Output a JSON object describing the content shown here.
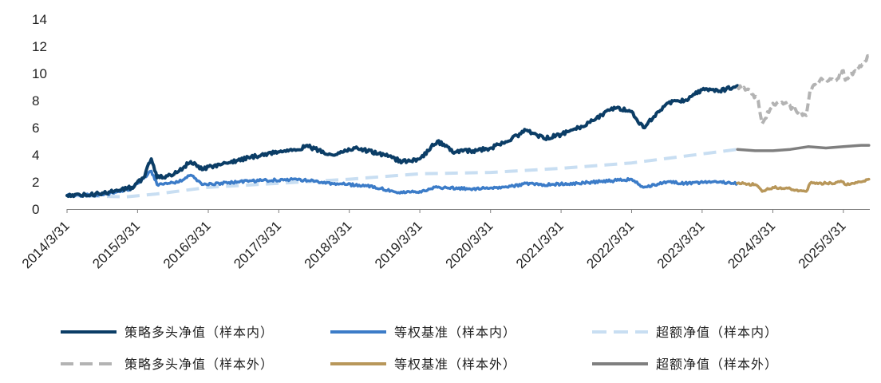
{
  "chart_data": {
    "type": "line",
    "title": "",
    "xlabel": "",
    "ylabel": "",
    "ylim": [
      0,
      14
    ],
    "yticks": [
      "0",
      "2",
      "4",
      "6",
      "8",
      "10",
      "12",
      "14"
    ],
    "xticks": [
      "2014/3/31",
      "2015/3/31",
      "2016/3/31",
      "2017/3/31",
      "2018/3/31",
      "2019/3/31",
      "2020/3/31",
      "2021/3/31",
      "2022/3/31",
      "2023/3/31",
      "2024/3/31",
      "2025/3/31"
    ],
    "grid": false,
    "legend_position": "bottom",
    "series": [
      {
        "name": "策略多头净值（样本内）",
        "color": "#0b3d66",
        "style": "solid",
        "points": [
          [
            "2014/3/31",
            1.0
          ],
          [
            "2014/7/31",
            1.05
          ],
          [
            "2014/11/30",
            1.3
          ],
          [
            "2015/2/28",
            1.6
          ],
          [
            "2015/4/30",
            2.3
          ],
          [
            "2015/6/10",
            3.7
          ],
          [
            "2015/7/10",
            2.3
          ],
          [
            "2015/9/30",
            2.5
          ],
          [
            "2015/12/31",
            3.5
          ],
          [
            "2016/2/28",
            2.9
          ],
          [
            "2016/4/30",
            3.2
          ],
          [
            "2016/8/31",
            3.6
          ],
          [
            "2016/12/31",
            4.0
          ],
          [
            "2017/4/30",
            4.3
          ],
          [
            "2017/8/31",
            4.6
          ],
          [
            "2017/12/31",
            4.0
          ],
          [
            "2018/4/30",
            4.5
          ],
          [
            "2018/8/31",
            4.1
          ],
          [
            "2018/12/31",
            3.5
          ],
          [
            "2019/3/31",
            3.7
          ],
          [
            "2019/6/30",
            5.0
          ],
          [
            "2019/9/30",
            4.2
          ],
          [
            "2019/12/31",
            4.3
          ],
          [
            "2020/3/31",
            4.5
          ],
          [
            "2020/6/30",
            5.0
          ],
          [
            "2020/9/30",
            5.8
          ],
          [
            "2020/12/31",
            5.2
          ],
          [
            "2021/3/31",
            5.5
          ],
          [
            "2021/6/30",
            6.0
          ],
          [
            "2021/9/30",
            6.7
          ],
          [
            "2021/12/31",
            7.5
          ],
          [
            "2022/3/31",
            7.2
          ],
          [
            "2022/5/31",
            6.0
          ],
          [
            "2022/9/30",
            7.8
          ],
          [
            "2022/12/31",
            8.0
          ],
          [
            "2023/3/31",
            8.8
          ],
          [
            "2023/6/30",
            8.7
          ],
          [
            "2023/9/30",
            9.1
          ]
        ]
      },
      {
        "name": "等权基准（样本内）",
        "color": "#3c7cc8",
        "style": "solid",
        "points": [
          [
            "2014/3/31",
            1.0
          ],
          [
            "2014/9/30",
            1.05
          ],
          [
            "2015/2/28",
            1.5
          ],
          [
            "2015/6/10",
            2.8
          ],
          [
            "2015/7/10",
            1.8
          ],
          [
            "2015/10/31",
            2.0
          ],
          [
            "2015/12/31",
            2.5
          ],
          [
            "2016/2/28",
            1.8
          ],
          [
            "2016/8/31",
            2.0
          ],
          [
            "2016/12/31",
            2.1
          ],
          [
            "2017/6/30",
            2.2
          ],
          [
            "2017/12/31",
            1.9
          ],
          [
            "2018/6/30",
            1.7
          ],
          [
            "2018/12/31",
            1.2
          ],
          [
            "2019/3/31",
            1.3
          ],
          [
            "2019/6/30",
            1.6
          ],
          [
            "2019/12/31",
            1.5
          ],
          [
            "2020/6/30",
            1.6
          ],
          [
            "2020/9/30",
            1.9
          ],
          [
            "2020/12/31",
            1.8
          ],
          [
            "2021/6/30",
            1.9
          ],
          [
            "2021/12/31",
            2.1
          ],
          [
            "2022/3/31",
            2.2
          ],
          [
            "2022/5/31",
            1.6
          ],
          [
            "2022/9/30",
            2.0
          ],
          [
            "2022/12/31",
            1.9
          ],
          [
            "2023/6/30",
            2.0
          ],
          [
            "2023/9/30",
            1.9
          ]
        ]
      },
      {
        "name": "超额净值（样本内）",
        "color": "#c8def2",
        "style": "dashed",
        "points": [
          [
            "2014/3/31",
            1.0
          ],
          [
            "2015/1/31",
            0.9
          ],
          [
            "2015/6/30",
            1.1
          ],
          [
            "2016/3/31",
            1.6
          ],
          [
            "2017/3/31",
            1.9
          ],
          [
            "2018/3/31",
            2.2
          ],
          [
            "2019/3/31",
            2.6
          ],
          [
            "2020/3/31",
            2.7
          ],
          [
            "2021/3/31",
            3.0
          ],
          [
            "2022/3/31",
            3.4
          ],
          [
            "2022/12/31",
            3.9
          ],
          [
            "2023/9/30",
            4.4
          ]
        ]
      },
      {
        "name": "策略多头净值（样本外）",
        "color": "#b3b3b3",
        "style": "dashed",
        "points": [
          [
            "2023/9/30",
            9.0
          ],
          [
            "2023/11/30",
            8.8
          ],
          [
            "2024/1/15",
            8.0
          ],
          [
            "2024/2/5",
            6.3
          ],
          [
            "2024/3/31",
            7.8
          ],
          [
            "2024/5/31",
            7.8
          ],
          [
            "2024/7/31",
            7.2
          ],
          [
            "2024/9/20",
            6.9
          ],
          [
            "2024/10/10",
            8.8
          ],
          [
            "2024/11/30",
            9.5
          ],
          [
            "2025/2/28",
            9.6
          ],
          [
            "2025/3/31",
            10.2
          ],
          [
            "2025/4/10",
            9.5
          ],
          [
            "2025/5/31",
            10.2
          ],
          [
            "2025/6/30",
            10.5
          ],
          [
            "2025/8/10",
            11.3
          ]
        ]
      },
      {
        "name": "等权基准（样本外）",
        "color": "#b8975a",
        "style": "solid",
        "points": [
          [
            "2023/9/30",
            1.9
          ],
          [
            "2023/12/31",
            1.8
          ],
          [
            "2024/2/5",
            1.3
          ],
          [
            "2024/3/31",
            1.6
          ],
          [
            "2024/6/30",
            1.5
          ],
          [
            "2024/9/20",
            1.3
          ],
          [
            "2024/10/10",
            1.9
          ],
          [
            "2024/12/31",
            1.9
          ],
          [
            "2025/3/31",
            2.0
          ],
          [
            "2025/4/10",
            1.8
          ],
          [
            "2025/6/30",
            2.0
          ],
          [
            "2025/8/10",
            2.2
          ]
        ]
      },
      {
        "name": "超额净值（样本外）",
        "color": "#7f7f7f",
        "style": "solid",
        "points": [
          [
            "2023/9/30",
            4.4
          ],
          [
            "2023/12/31",
            4.3
          ],
          [
            "2024/3/31",
            4.3
          ],
          [
            "2024/6/30",
            4.4
          ],
          [
            "2024/9/30",
            4.6
          ],
          [
            "2024/12/31",
            4.5
          ],
          [
            "2025/3/31",
            4.6
          ],
          [
            "2025/6/30",
            4.7
          ],
          [
            "2025/8/10",
            4.7
          ]
        ]
      }
    ]
  }
}
